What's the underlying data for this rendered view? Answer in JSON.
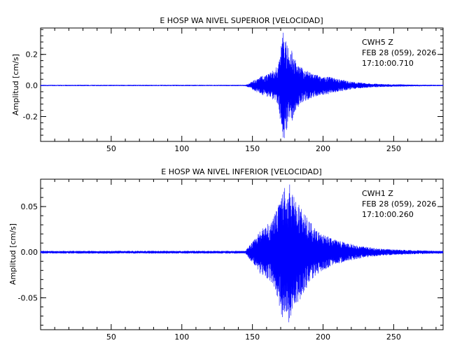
{
  "chart_data": [
    {
      "type": "line",
      "title": "E HOSP WA NIVEL SUPERIOR [VELOCIDAD]",
      "xlabel": "",
      "ylabel": "Amplitud [cm/s]",
      "xlim": [
        0,
        285
      ],
      "ylim": [
        -0.36,
        0.37
      ],
      "xticks": [
        50,
        100,
        150,
        200,
        250
      ],
      "yticks": [
        0.2,
        0.0,
        -0.2
      ],
      "ytick_labels": [
        "0.2",
        "0.0",
        "-0.2"
      ],
      "grid": false,
      "line_color": "#0000ff",
      "annotation": [
        "CWH5   Z",
        "FEB 28 (059), 2026",
        "17:10:00.710"
      ],
      "series": [
        {
          "x": [
            0,
            145,
            148,
            152,
            156,
            160,
            164,
            168,
            170,
            172,
            174,
            176,
            178,
            180,
            183,
            186,
            190,
            195,
            200,
            205,
            210,
            215,
            220,
            230,
            240,
            250,
            260,
            270,
            285
          ],
          "envelope": [
            0.004,
            0.004,
            0.015,
            0.04,
            0.06,
            0.07,
            0.09,
            0.13,
            0.25,
            0.36,
            0.3,
            0.2,
            0.23,
            0.17,
            0.13,
            0.11,
            0.09,
            0.07,
            0.06,
            0.055,
            0.045,
            0.035,
            0.025,
            0.015,
            0.01,
            0.008,
            0.006,
            0.005,
            0.004
          ]
        }
      ]
    },
    {
      "type": "line",
      "title": "E HOSP WA NIVEL INFERIOR [VELOCIDAD]",
      "xlabel": "",
      "ylabel": "Amplitud [cm/s]",
      "xlim": [
        0,
        285
      ],
      "ylim": [
        -0.085,
        0.08
      ],
      "xticks": [
        50,
        100,
        150,
        200,
        250
      ],
      "yticks": [
        0.05,
        0.0,
        -0.05
      ],
      "ytick_labels": [
        "0.05",
        "0.00",
        "-0.05"
      ],
      "grid": false,
      "line_color": "#0000ff",
      "annotation": [
        "CWH1   Z",
        "FEB 28 (059), 2026",
        "17:10:00.260"
      ],
      "series": [
        {
          "x": [
            0,
            145,
            148,
            152,
            156,
            160,
            164,
            168,
            170,
            172,
            174,
            176,
            178,
            180,
            183,
            186,
            190,
            195,
            200,
            205,
            210,
            215,
            220,
            230,
            240,
            250,
            260,
            270,
            285
          ],
          "envelope": [
            0.0015,
            0.0015,
            0.008,
            0.015,
            0.025,
            0.03,
            0.035,
            0.05,
            0.07,
            0.075,
            0.065,
            0.08,
            0.065,
            0.06,
            0.055,
            0.045,
            0.035,
            0.025,
            0.02,
            0.016,
            0.013,
            0.011,
            0.009,
            0.006,
            0.004,
            0.003,
            0.0025,
            0.002,
            0.0015
          ]
        }
      ]
    }
  ]
}
